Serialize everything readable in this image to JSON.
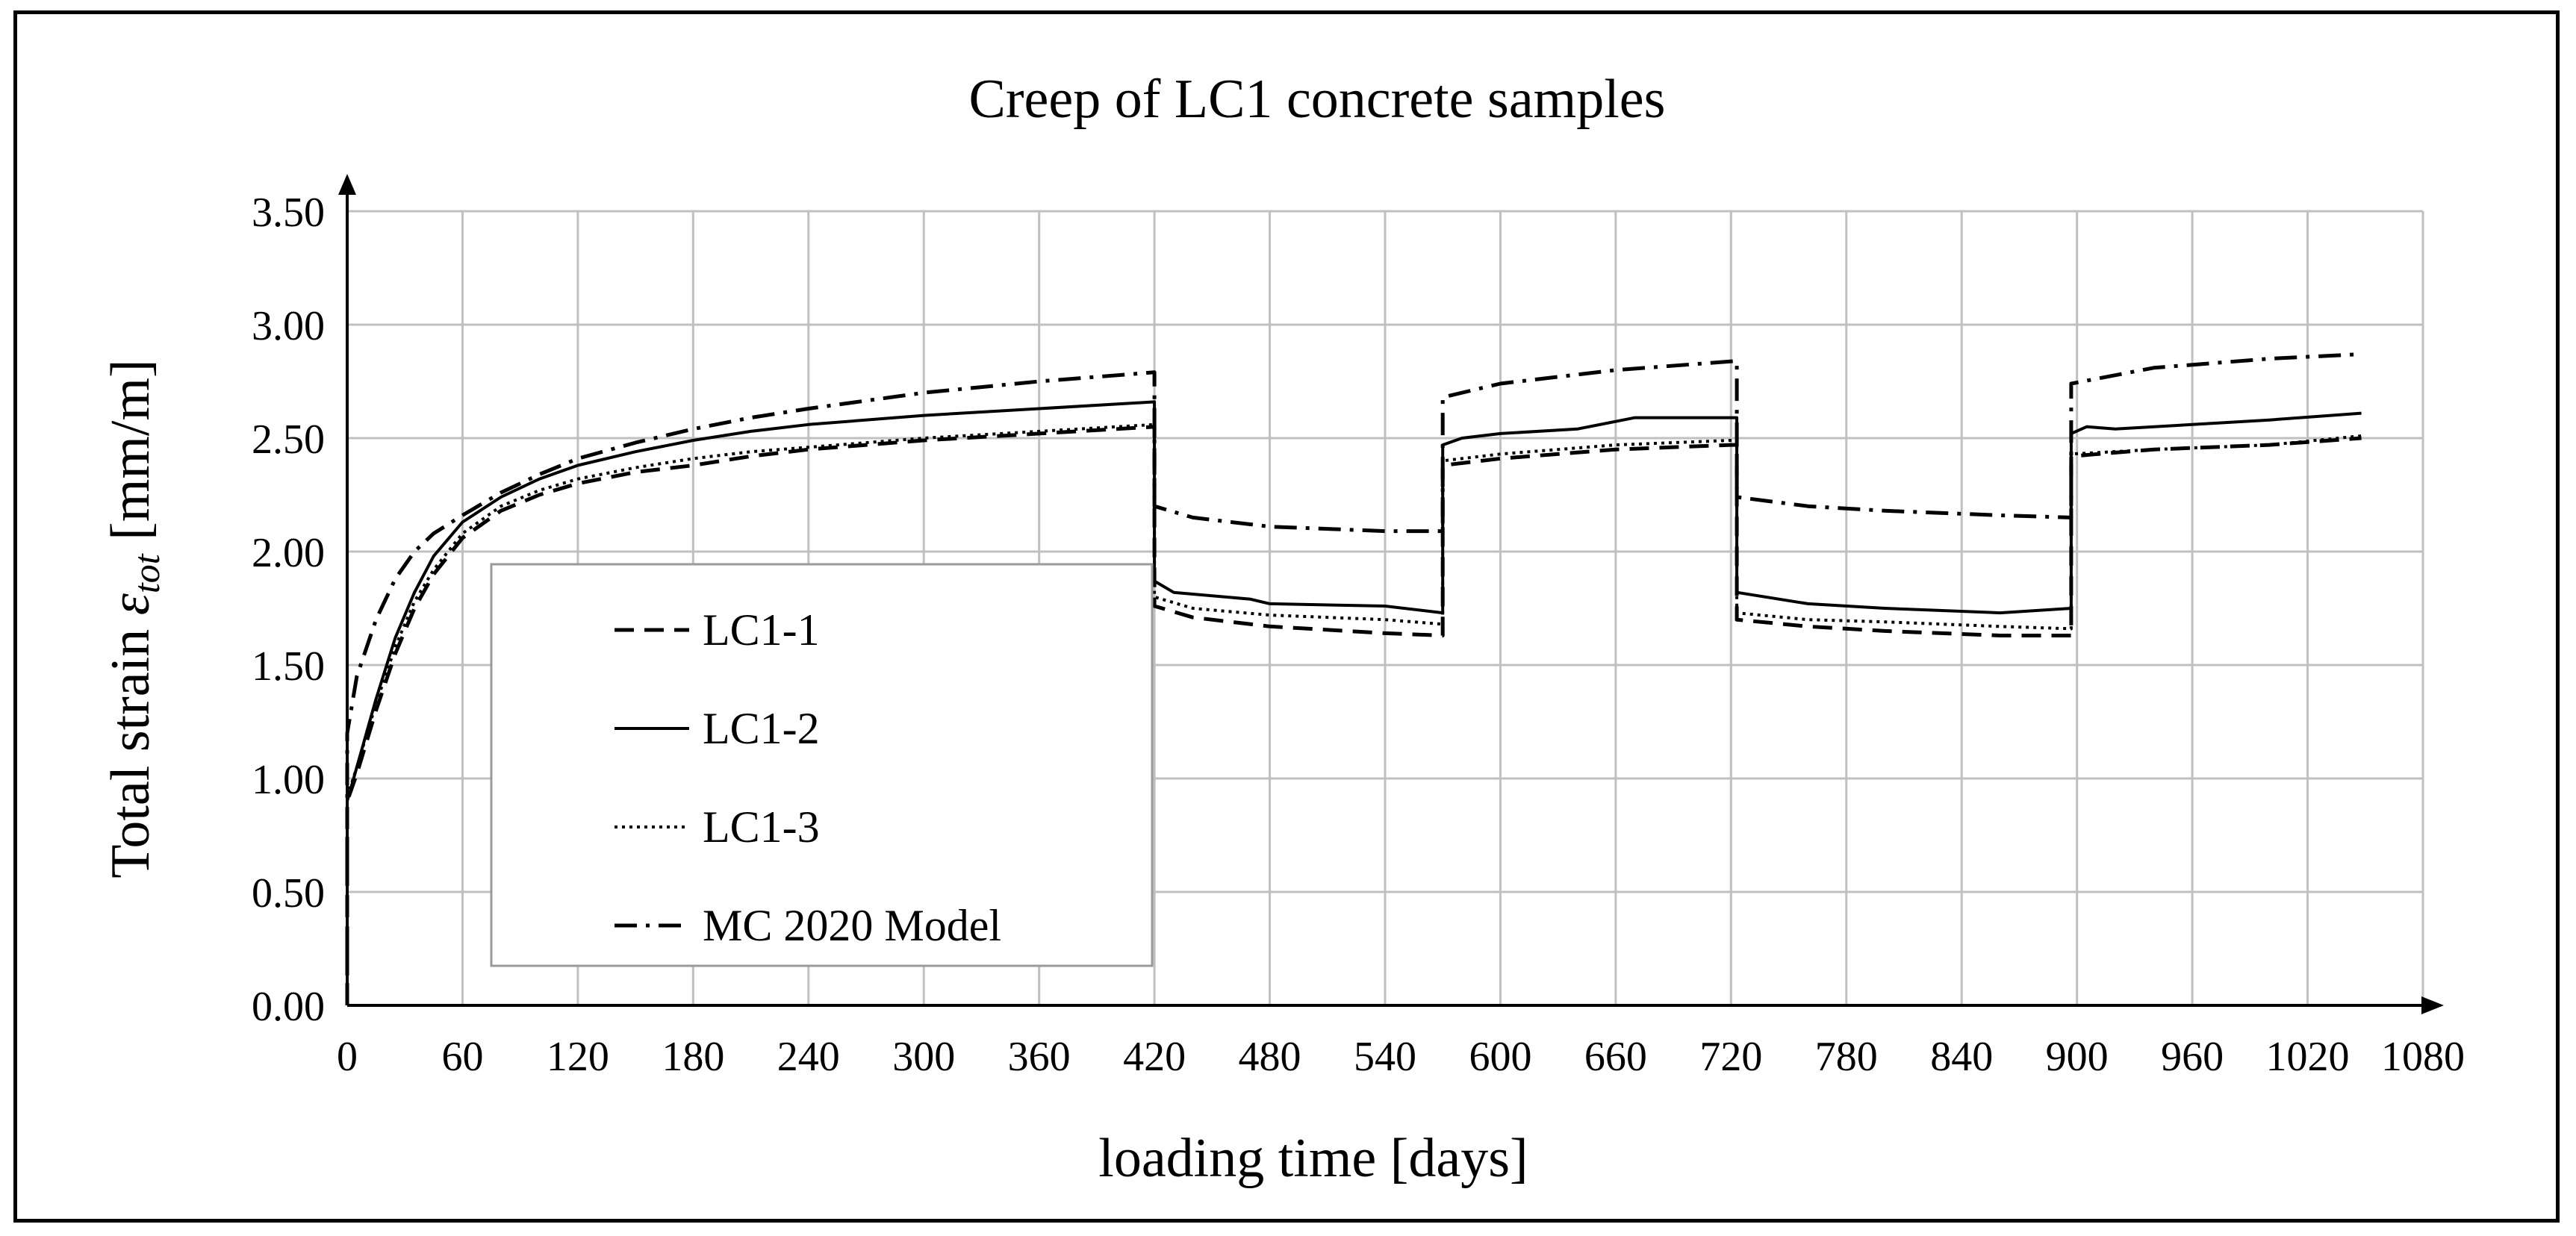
{
  "chart_data": {
    "type": "line",
    "title": "Creep of LC1 concrete samples",
    "xlabel": "loading time [days]",
    "ylabel": {
      "prefix": "Total strain ",
      "symbol": "ε",
      "subscript": "tot",
      "suffix": " [mm/m]"
    },
    "xlim": [
      0,
      1080
    ],
    "ylim": [
      0,
      3.5
    ],
    "x_ticks": [
      "0",
      "60",
      "120",
      "180",
      "240",
      "300",
      "360",
      "420",
      "480",
      "540",
      "600",
      "660",
      "720",
      "780",
      "840",
      "900",
      "960",
      "1020",
      "1080"
    ],
    "y_ticks": [
      "0.00",
      "0.50",
      "1.00",
      "1.50",
      "2.00",
      "2.50",
      "3.00",
      "3.50"
    ],
    "grid": true,
    "legend_position": "left",
    "series": [
      {
        "name": "LC1-1",
        "style": "dashed",
        "points": [
          [
            0,
            0
          ],
          [
            0,
            0.9
          ],
          [
            5,
            1.02
          ],
          [
            15,
            1.3
          ],
          [
            25,
            1.55
          ],
          [
            35,
            1.75
          ],
          [
            45,
            1.9
          ],
          [
            60,
            2.06
          ],
          [
            80,
            2.18
          ],
          [
            100,
            2.25
          ],
          [
            120,
            2.3
          ],
          [
            150,
            2.35
          ],
          [
            180,
            2.38
          ],
          [
            210,
            2.42
          ],
          [
            240,
            2.45
          ],
          [
            300,
            2.49
          ],
          [
            360,
            2.52
          ],
          [
            420,
            2.55
          ],
          [
            420,
            1.76
          ],
          [
            440,
            1.71
          ],
          [
            480,
            1.67
          ],
          [
            540,
            1.64
          ],
          [
            570,
            1.63
          ],
          [
            570,
            2.38
          ],
          [
            600,
            2.41
          ],
          [
            660,
            2.45
          ],
          [
            720,
            2.47
          ],
          [
            723,
            2.47
          ],
          [
            723,
            1.7
          ],
          [
            760,
            1.67
          ],
          [
            800,
            1.65
          ],
          [
            860,
            1.63
          ],
          [
            897,
            1.63
          ],
          [
            897,
            2.42
          ],
          [
            940,
            2.45
          ],
          [
            1000,
            2.47
          ],
          [
            1048,
            2.5
          ]
        ]
      },
      {
        "name": "LC1-2",
        "style": "solid",
        "points": [
          [
            0,
            0
          ],
          [
            0,
            0.9
          ],
          [
            5,
            1.05
          ],
          [
            15,
            1.35
          ],
          [
            25,
            1.62
          ],
          [
            35,
            1.82
          ],
          [
            45,
            1.98
          ],
          [
            60,
            2.13
          ],
          [
            80,
            2.24
          ],
          [
            100,
            2.32
          ],
          [
            120,
            2.38
          ],
          [
            150,
            2.44
          ],
          [
            180,
            2.49
          ],
          [
            210,
            2.53
          ],
          [
            240,
            2.56
          ],
          [
            300,
            2.6
          ],
          [
            360,
            2.63
          ],
          [
            420,
            2.66
          ],
          [
            420,
            1.87
          ],
          [
            430,
            1.82
          ],
          [
            470,
            1.79
          ],
          [
            480,
            1.77
          ],
          [
            540,
            1.76
          ],
          [
            570,
            1.73
          ],
          [
            570,
            2.47
          ],
          [
            580,
            2.5
          ],
          [
            600,
            2.52
          ],
          [
            640,
            2.54
          ],
          [
            670,
            2.59
          ],
          [
            723,
            2.59
          ],
          [
            723,
            1.82
          ],
          [
            760,
            1.77
          ],
          [
            800,
            1.75
          ],
          [
            860,
            1.73
          ],
          [
            897,
            1.75
          ],
          [
            897,
            2.52
          ],
          [
            905,
            2.55
          ],
          [
            920,
            2.54
          ],
          [
            960,
            2.56
          ],
          [
            1000,
            2.58
          ],
          [
            1048,
            2.61
          ]
        ]
      },
      {
        "name": "LC1-3",
        "style": "dotted",
        "points": [
          [
            0,
            0
          ],
          [
            0,
            0.92
          ],
          [
            5,
            1.05
          ],
          [
            15,
            1.33
          ],
          [
            25,
            1.58
          ],
          [
            35,
            1.78
          ],
          [
            45,
            1.92
          ],
          [
            60,
            2.08
          ],
          [
            80,
            2.2
          ],
          [
            100,
            2.27
          ],
          [
            120,
            2.32
          ],
          [
            150,
            2.37
          ],
          [
            180,
            2.41
          ],
          [
            210,
            2.44
          ],
          [
            240,
            2.46
          ],
          [
            300,
            2.5
          ],
          [
            360,
            2.53
          ],
          [
            420,
            2.56
          ],
          [
            420,
            1.8
          ],
          [
            440,
            1.75
          ],
          [
            480,
            1.72
          ],
          [
            540,
            1.7
          ],
          [
            570,
            1.68
          ],
          [
            570,
            2.4
          ],
          [
            600,
            2.43
          ],
          [
            660,
            2.47
          ],
          [
            720,
            2.49
          ],
          [
            723,
            2.49
          ],
          [
            723,
            1.73
          ],
          [
            760,
            1.7
          ],
          [
            800,
            1.69
          ],
          [
            860,
            1.67
          ],
          [
            897,
            1.66
          ],
          [
            897,
            2.43
          ],
          [
            940,
            2.45
          ],
          [
            1000,
            2.47
          ],
          [
            1048,
            2.51
          ]
        ]
      },
      {
        "name": "MC 2020 Model",
        "style": "dashdot",
        "points": [
          [
            0,
            0
          ],
          [
            0,
            1.2
          ],
          [
            5,
            1.45
          ],
          [
            15,
            1.7
          ],
          [
            25,
            1.88
          ],
          [
            35,
            2.0
          ],
          [
            45,
            2.08
          ],
          [
            60,
            2.16
          ],
          [
            80,
            2.26
          ],
          [
            100,
            2.34
          ],
          [
            120,
            2.41
          ],
          [
            150,
            2.48
          ],
          [
            180,
            2.54
          ],
          [
            210,
            2.59
          ],
          [
            240,
            2.63
          ],
          [
            300,
            2.7
          ],
          [
            360,
            2.75
          ],
          [
            420,
            2.79
          ],
          [
            420,
            2.2
          ],
          [
            440,
            2.15
          ],
          [
            480,
            2.11
          ],
          [
            540,
            2.09
          ],
          [
            570,
            2.09
          ],
          [
            570,
            2.68
          ],
          [
            600,
            2.74
          ],
          [
            660,
            2.8
          ],
          [
            723,
            2.84
          ],
          [
            723,
            2.24
          ],
          [
            760,
            2.2
          ],
          [
            800,
            2.18
          ],
          [
            860,
            2.16
          ],
          [
            897,
            2.15
          ],
          [
            897,
            2.74
          ],
          [
            940,
            2.81
          ],
          [
            1000,
            2.85
          ],
          [
            1048,
            2.87
          ]
        ]
      }
    ]
  }
}
